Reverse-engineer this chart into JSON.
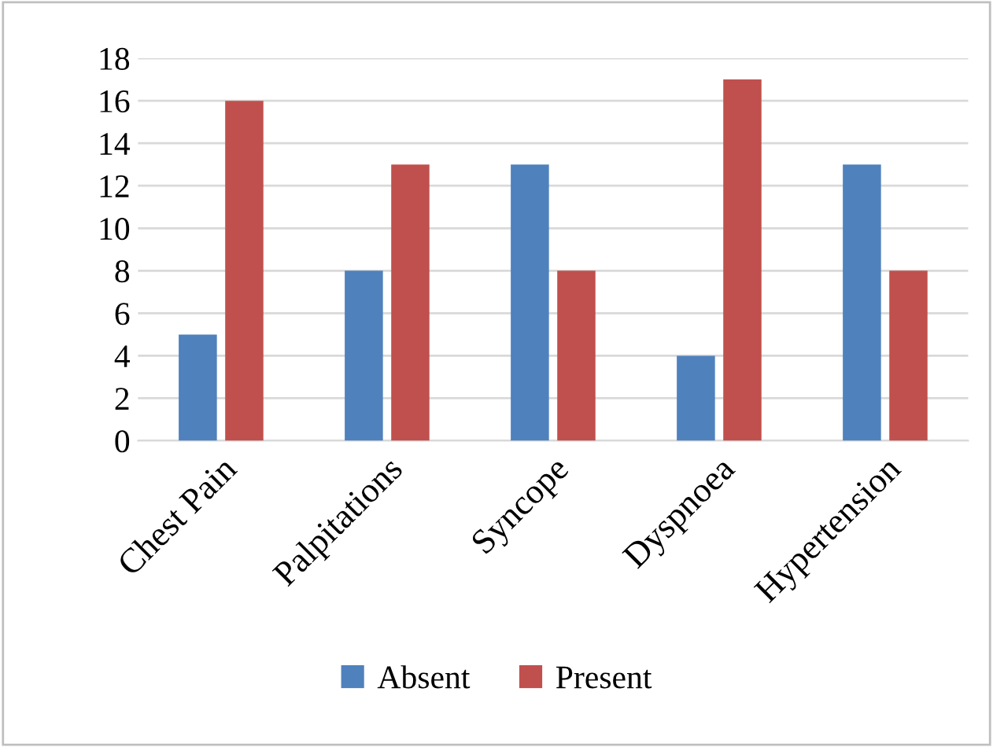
{
  "chart_data": {
    "type": "bar",
    "categories": [
      "Chest Pain",
      "Palpitations",
      "Syncope",
      "Dyspnoea",
      "Hypertension"
    ],
    "series": [
      {
        "name": "Absent",
        "color": "#4f81bd",
        "values": [
          5,
          8,
          13,
          4,
          13
        ]
      },
      {
        "name": "Present",
        "color": "#c0504d",
        "values": [
          16,
          13,
          8,
          17,
          8
        ]
      }
    ],
    "ylim": [
      0,
      18
    ],
    "yticks": [
      0,
      2,
      4,
      6,
      8,
      10,
      12,
      14,
      16,
      18
    ],
    "grid": "y",
    "legend": "bottom"
  }
}
